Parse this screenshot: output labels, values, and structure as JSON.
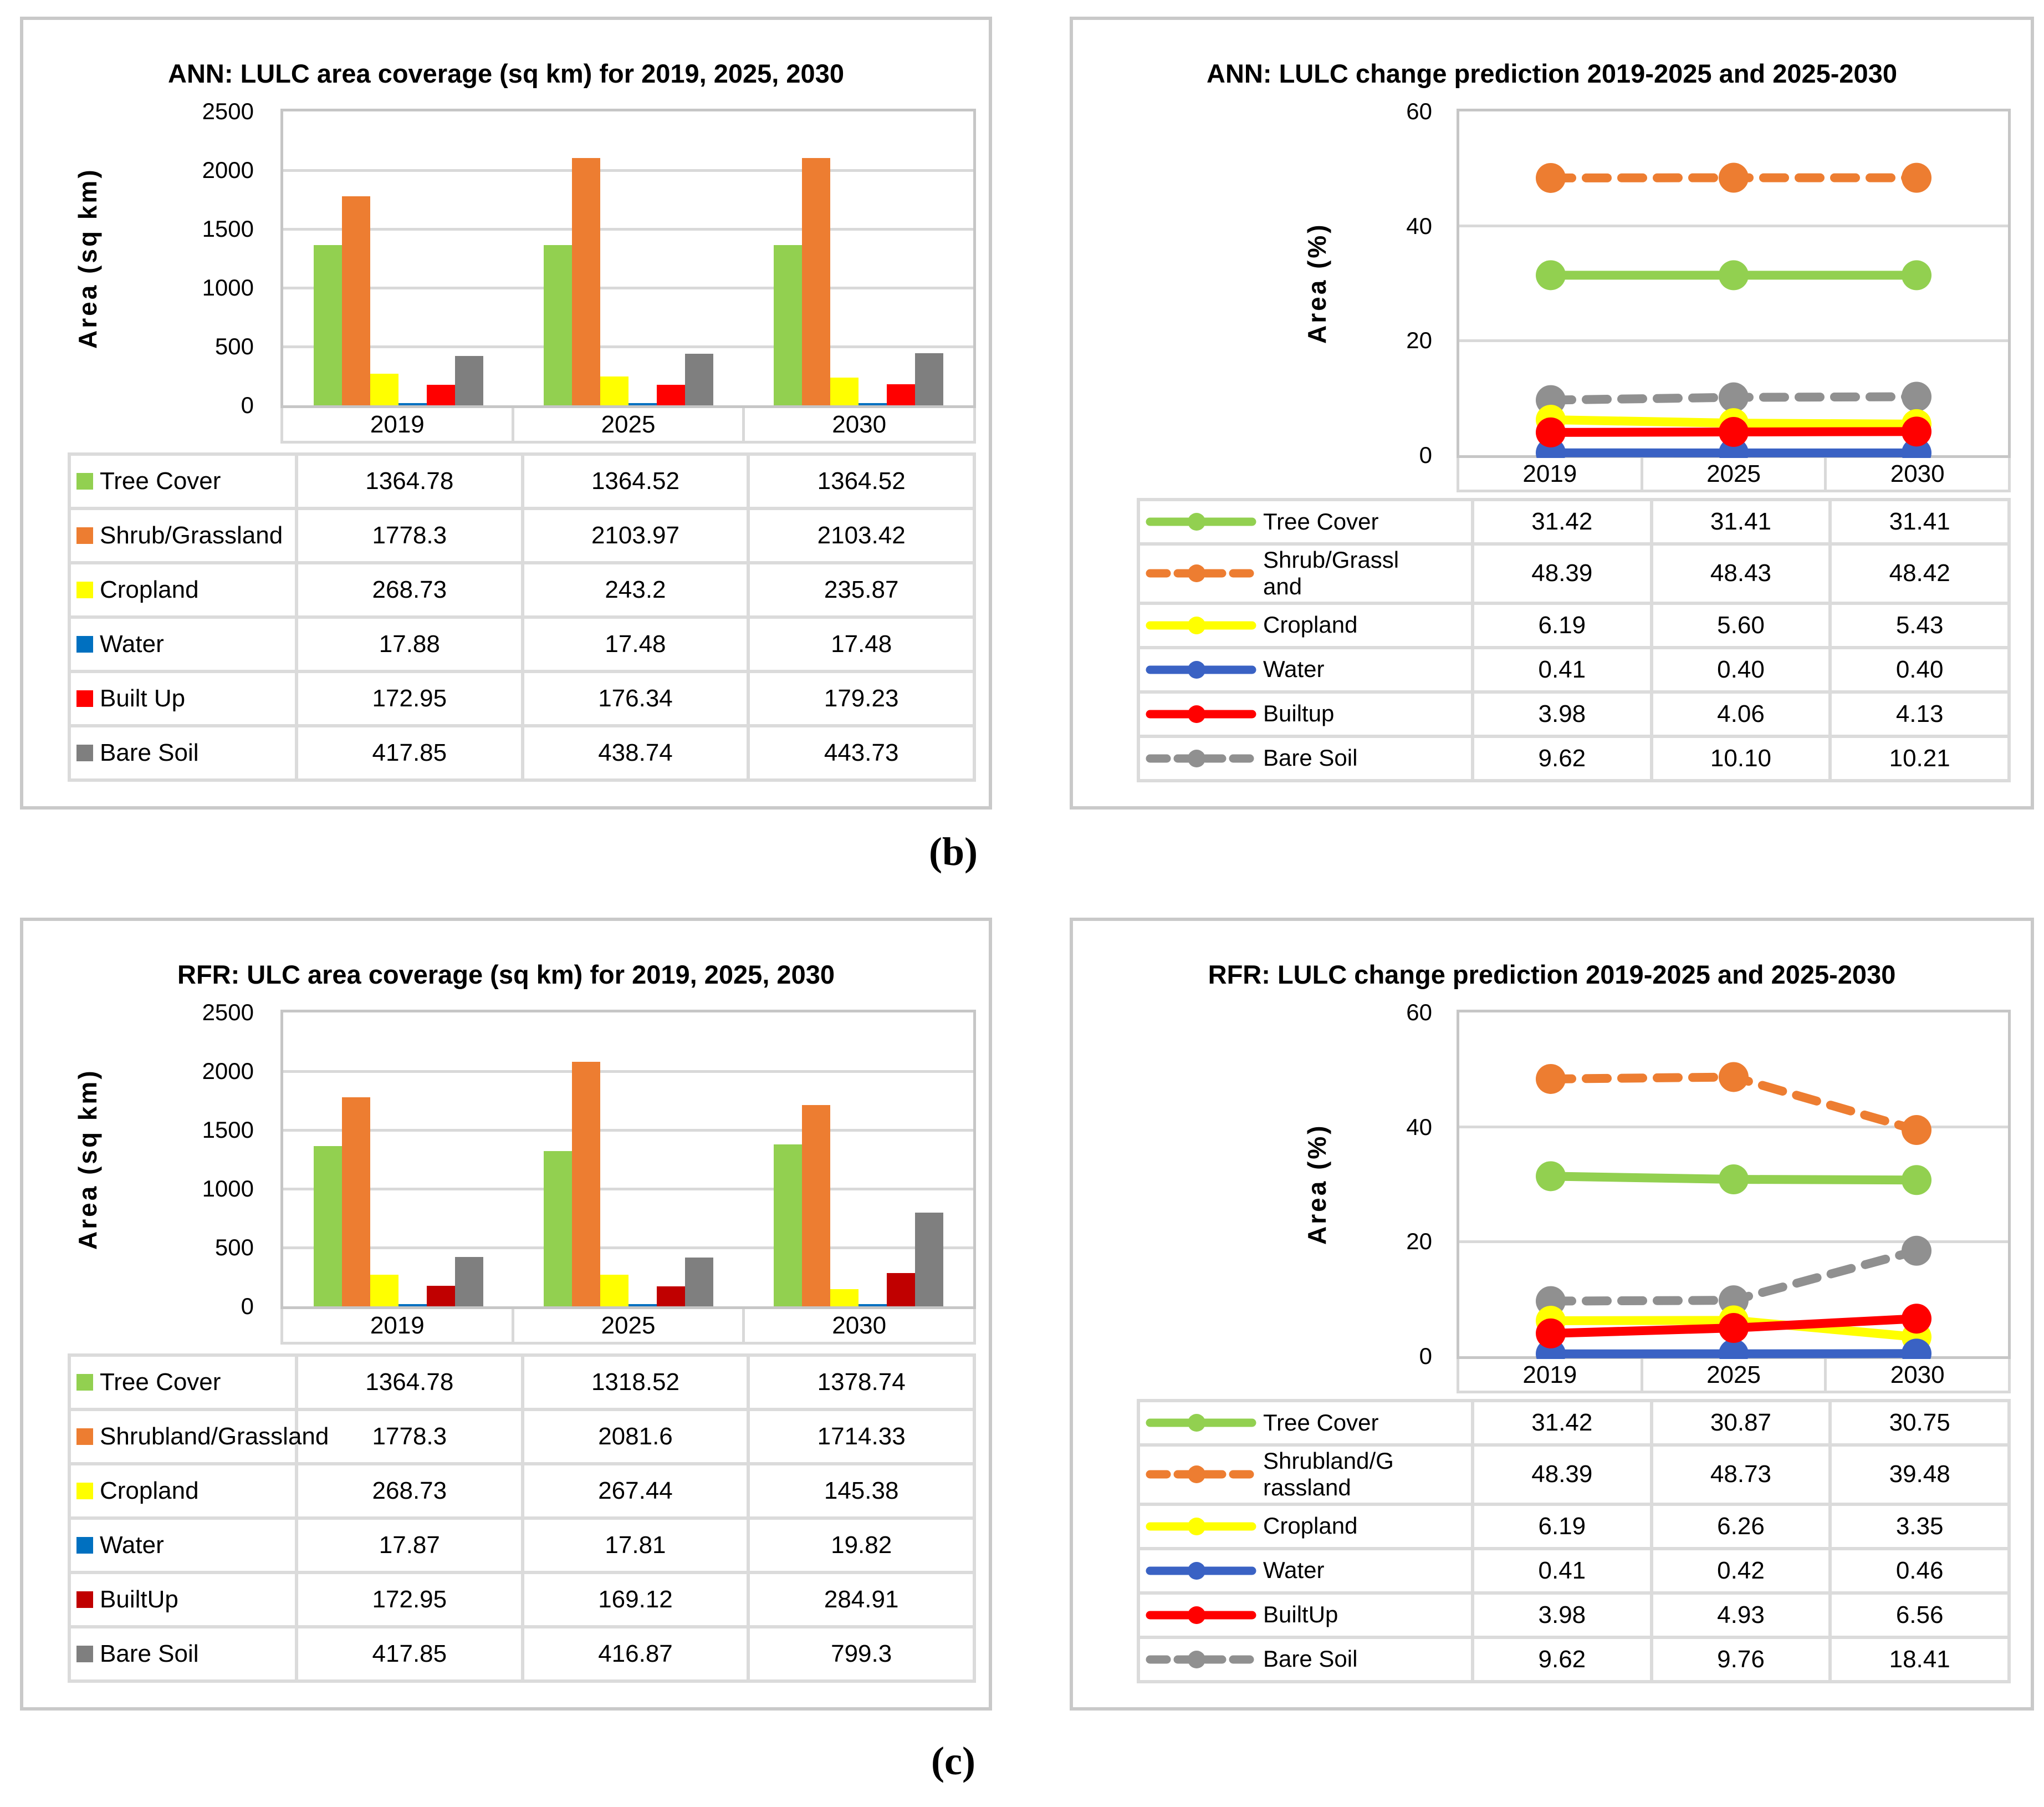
{
  "figure": {
    "label_b": "(b)",
    "label_c": "(c)"
  },
  "colors": {
    "grid": "#D9D9D9",
    "panel_border": "#C9C9C9",
    "tree_cover_green": "#92D050",
    "shrub_orange": "#ED7D31",
    "cropland_yellow": "#FFFF00",
    "water_bar_blue": "#0070C0",
    "water_line_blue": "#3A62C4",
    "builtup_red": "#FF0000",
    "builtup_dark_red": "#C00000",
    "bare_soil_gray": "#7F7F7F"
  },
  "chart_data": [
    {
      "id": "ann-area",
      "type": "bar",
      "title": "ANN: LULC area coverage (sq km) for 2019, 2025, 2030",
      "ylabel": "Area (sq km)",
      "ylim": [
        0,
        2500
      ],
      "yticks_top_to_bottom": [
        "2500",
        "2000",
        "1500",
        "1000",
        "500",
        "0"
      ],
      "categories": [
        "2019",
        "2025",
        "2030"
      ],
      "grid": true,
      "legend_position": "table-left-column",
      "series": [
        {
          "name": "Tree Cover",
          "color": "#92D050",
          "values": [
            1364.78,
            1364.52,
            1364.52
          ],
          "display": [
            "1364.78",
            "1364.52",
            "1364.52"
          ]
        },
        {
          "name": "Shrub/Grassland",
          "color": "#ED7D31",
          "values": [
            1778.3,
            2103.97,
            2103.42
          ],
          "display": [
            "1778.3",
            "2103.97",
            "2103.42"
          ]
        },
        {
          "name": "Cropland",
          "color": "#FFFF00",
          "values": [
            268.73,
            243.2,
            235.87
          ],
          "display": [
            "268.73",
            "243.2",
            "235.87"
          ]
        },
        {
          "name": "Water",
          "color": "#0070C0",
          "values": [
            17.88,
            17.48,
            17.48
          ],
          "display": [
            "17.88",
            "17.48",
            "17.48"
          ]
        },
        {
          "name": "Built Up",
          "color": "#FF0000",
          "values": [
            172.95,
            176.34,
            179.23
          ],
          "display": [
            "172.95",
            "176.34",
            "179.23"
          ]
        },
        {
          "name": "Bare Soil",
          "color": "#7F7F7F",
          "values": [
            417.85,
            438.74,
            443.73
          ],
          "display": [
            "417.85",
            "438.74",
            "443.73"
          ]
        }
      ]
    },
    {
      "id": "ann-change",
      "type": "line",
      "title": "ANN: LULC change prediction 2019-2025 and 2025-2030",
      "ylabel": "Area (%)",
      "ylim": [
        0,
        60
      ],
      "yticks_top_to_bottom": [
        "60",
        "40",
        "20",
        "0"
      ],
      "categories": [
        "2019",
        "2025",
        "2030"
      ],
      "grid": true,
      "legend_position": "table-left-column",
      "draw_order": [
        1,
        0,
        5,
        2,
        3,
        4
      ],
      "series": [
        {
          "name": "Tree Cover",
          "color": "#92D050",
          "dashed": false,
          "values": [
            31.42,
            31.41,
            31.41
          ],
          "display": [
            "31.42",
            "31.41",
            "31.41"
          ]
        },
        {
          "name": "Shrub/Grassland",
          "color": "#ED7D31",
          "dashed": true,
          "values": [
            48.39,
            48.43,
            48.42
          ],
          "display": [
            "48.39",
            "48.43",
            "48.42"
          ]
        },
        {
          "name": "Cropland",
          "color": "#FFFF00",
          "dashed": false,
          "values": [
            6.19,
            5.6,
            5.43
          ],
          "display": [
            "6.19",
            "5.60",
            "5.43"
          ]
        },
        {
          "name": "Water",
          "color": "#3A62C4",
          "dashed": false,
          "values": [
            0.41,
            0.4,
            0.4
          ],
          "display": [
            "0.41",
            "0.40",
            "0.40"
          ]
        },
        {
          "name": "Builtup",
          "color": "#FF0000",
          "dashed": false,
          "values": [
            3.98,
            4.06,
            4.13
          ],
          "display": [
            "3.98",
            "4.06",
            "4.13"
          ]
        },
        {
          "name": "Bare Soil",
          "color": "#909090",
          "dashed": true,
          "values": [
            9.62,
            10.1,
            10.21
          ],
          "display": [
            "9.62",
            "10.10",
            "10.21"
          ]
        }
      ]
    },
    {
      "id": "rfr-area",
      "type": "bar",
      "title": "RFR: ULC area coverage (sq km) for 2019, 2025, 2030",
      "ylabel": "Area (sq km)",
      "ylim": [
        0,
        2500
      ],
      "yticks_top_to_bottom": [
        "2500",
        "2000",
        "1500",
        "1000",
        "500",
        "0"
      ],
      "categories": [
        "2019",
        "2025",
        "2030"
      ],
      "grid": true,
      "legend_position": "table-left-column",
      "series": [
        {
          "name": "Tree Cover",
          "color": "#92D050",
          "values": [
            1364.78,
            1318.52,
            1378.74
          ],
          "display": [
            "1364.78",
            "1318.52",
            "1378.74"
          ]
        },
        {
          "name": "Shrubland/Grassland",
          "color": "#ED7D31",
          "values": [
            1778.3,
            2081.6,
            1714.33
          ],
          "display": [
            "1778.3",
            "2081.6",
            "1714.33"
          ]
        },
        {
          "name": "Cropland",
          "color": "#FFFF00",
          "values": [
            268.73,
            267.44,
            145.38
          ],
          "display": [
            "268.73",
            "267.44",
            "145.38"
          ]
        },
        {
          "name": "Water",
          "color": "#0070C0",
          "values": [
            17.87,
            17.81,
            19.82
          ],
          "display": [
            "17.87",
            "17.81",
            "19.82"
          ]
        },
        {
          "name": "BuiltUp",
          "color": "#C00000",
          "values": [
            172.95,
            169.12,
            284.91
          ],
          "display": [
            "172.95",
            "169.12",
            "284.91"
          ]
        },
        {
          "name": "Bare Soil",
          "color": "#7F7F7F",
          "values": [
            417.85,
            416.87,
            799.3
          ],
          "display": [
            "417.85",
            "416.87",
            "799.3"
          ]
        }
      ]
    },
    {
      "id": "rfr-change",
      "type": "line",
      "title": "RFR: LULC change prediction 2019-2025 and 2025-2030",
      "ylabel": "Area (%)",
      "ylim": [
        0,
        60
      ],
      "yticks_top_to_bottom": [
        "60",
        "40",
        "20",
        "0"
      ],
      "categories": [
        "2019",
        "2025",
        "2030"
      ],
      "grid": true,
      "legend_position": "table-left-column",
      "draw_order": [
        1,
        0,
        5,
        2,
        3,
        4
      ],
      "series": [
        {
          "name": "Tree Cover",
          "color": "#92D050",
          "dashed": false,
          "values": [
            31.42,
            30.87,
            30.75
          ],
          "display": [
            "31.42",
            "30.87",
            "30.75"
          ]
        },
        {
          "name": "Shrubland/Grassland",
          "color": "#ED7D31",
          "dashed": true,
          "values": [
            48.39,
            48.73,
            39.48
          ],
          "display": [
            "48.39",
            "48.73",
            "39.48"
          ]
        },
        {
          "name": "Cropland",
          "color": "#FFFF00",
          "dashed": false,
          "values": [
            6.19,
            6.26,
            3.35
          ],
          "display": [
            "6.19",
            "6.26",
            "3.35"
          ]
        },
        {
          "name": "Water",
          "color": "#3A62C4",
          "dashed": false,
          "values": [
            0.41,
            0.42,
            0.46
          ],
          "display": [
            "0.41",
            "0.42",
            "0.46"
          ]
        },
        {
          "name": "BuiltUp",
          "color": "#FF0000",
          "dashed": false,
          "values": [
            3.98,
            4.93,
            6.56
          ],
          "display": [
            "3.98",
            "4.93",
            "6.56"
          ]
        },
        {
          "name": "Bare Soil",
          "color": "#909090",
          "dashed": true,
          "values": [
            9.62,
            9.76,
            18.41
          ],
          "display": [
            "9.62",
            "9.76",
            "18.41"
          ]
        }
      ]
    }
  ]
}
